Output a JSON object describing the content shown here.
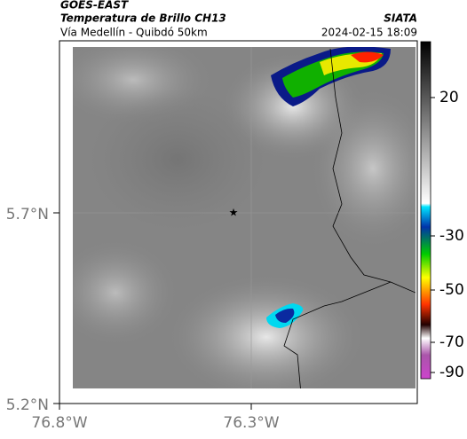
{
  "header": {
    "title": "GOES-EAST",
    "subtitle": "Temperatura de Brillo CH13",
    "source": "SIATA",
    "route": "Vía Medellín - Quibdó 50km",
    "timestamp": "2024-02-15 18:09"
  },
  "map": {
    "lat_labels": [
      "5.7°N",
      "5.2°N"
    ],
    "lon_labels": [
      "76.8°W",
      "76.3°W"
    ]
  },
  "colorbar": {
    "labels": [
      "20",
      "-30",
      "-50",
      "-70",
      "-90"
    ]
  }
}
